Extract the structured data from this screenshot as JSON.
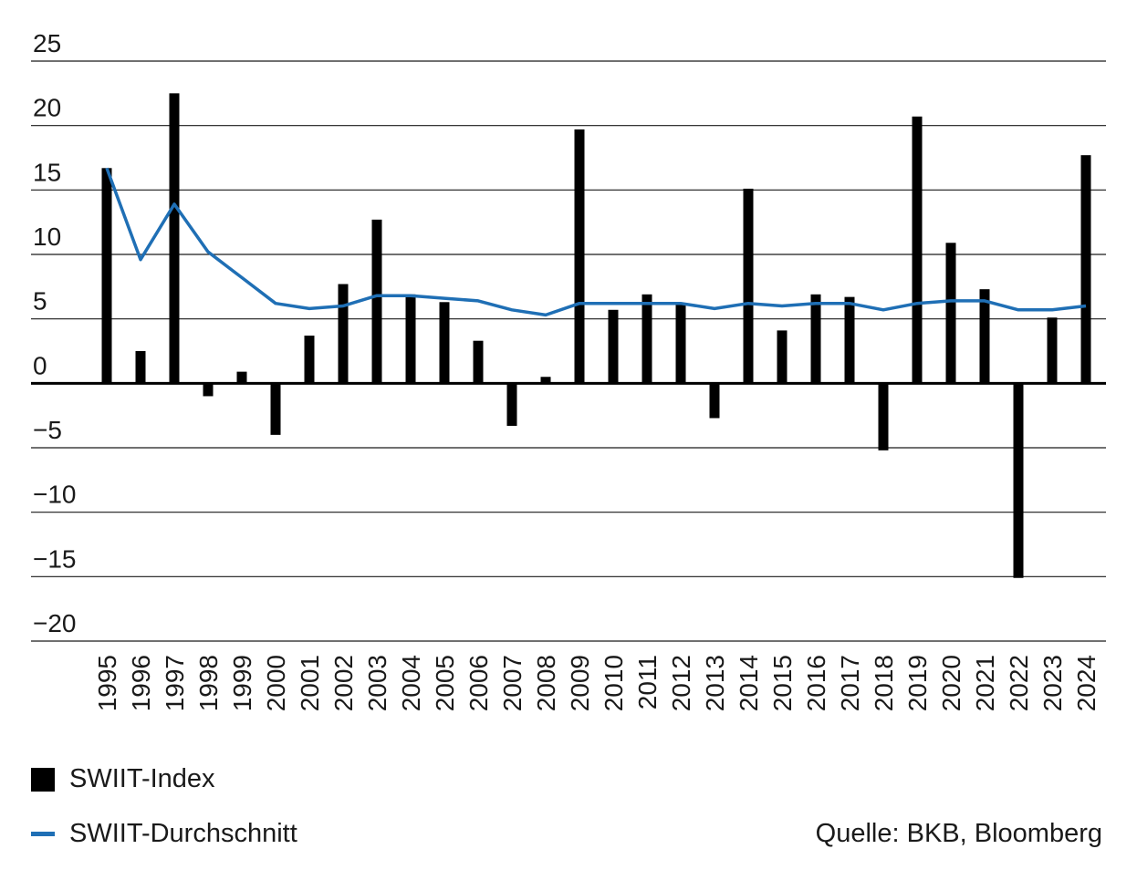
{
  "chart_data": {
    "type": "bar",
    "categories": [
      "1995",
      "1996",
      "1997",
      "1998",
      "1999",
      "2000",
      "2001",
      "2002",
      "2003",
      "2004",
      "2005",
      "2006",
      "2007",
      "2008",
      "2009",
      "2010",
      "2011",
      "2012",
      "2013",
      "2014",
      "2015",
      "2016",
      "2017",
      "2018",
      "2019",
      "2020",
      "2021",
      "2022",
      "2023",
      "2024"
    ],
    "series": [
      {
        "name": "SWIIT-Index",
        "kind": "bar",
        "color": "#000000",
        "values": [
          16.7,
          2.5,
          22.5,
          -1.0,
          0.9,
          -4.0,
          3.7,
          7.7,
          12.7,
          6.9,
          6.3,
          3.3,
          -3.3,
          0.5,
          19.7,
          5.7,
          6.9,
          6.2,
          -2.7,
          15.1,
          4.1,
          6.9,
          6.7,
          -5.2,
          20.7,
          10.9,
          7.3,
          -15.1,
          5.1,
          17.7
        ]
      },
      {
        "name": "SWIIT-Durchschnitt",
        "kind": "line",
        "color": "#1f6fb5",
        "values": [
          16.7,
          9.6,
          13.9,
          10.2,
          8.2,
          6.2,
          5.8,
          6.0,
          6.8,
          6.8,
          6.6,
          6.4,
          5.7,
          5.3,
          6.2,
          6.2,
          6.2,
          6.2,
          5.8,
          6.2,
          6.0,
          6.2,
          6.2,
          5.7,
          6.2,
          6.4,
          6.4,
          5.7,
          5.7,
          6.0
        ]
      }
    ],
    "yticks": [
      "25",
      "20",
      "15",
      "10",
      "5",
      "0",
      "−5",
      "−10",
      "−15",
      "−20"
    ],
    "ylim": [
      -20,
      25
    ],
    "grid": true,
    "legend_placement": "bottom-left"
  },
  "legend": {
    "index_label": "SWIIT-Index",
    "average_label": "SWIIT-Durchschnitt"
  },
  "source": "Quelle: BKB, Bloomberg"
}
